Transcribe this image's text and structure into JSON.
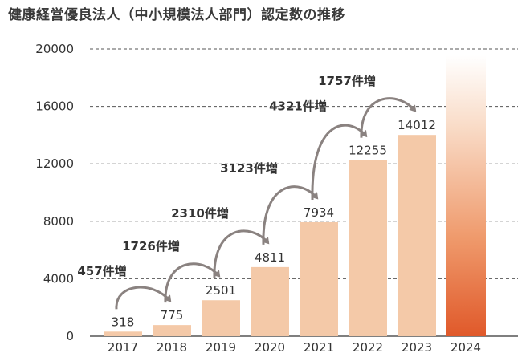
{
  "chart_data": {
    "type": "bar",
    "title": "健康経営優良法人（中小規模法人部門）認定数の推移",
    "categories": [
      "2017",
      "2018",
      "2019",
      "2020",
      "2021",
      "2022",
      "2023",
      "2024"
    ],
    "values": [
      318,
      775,
      2501,
      4811,
      7934,
      12255,
      14012,
      null
    ],
    "value_labels": [
      "318",
      "775",
      "2501",
      "4811",
      "7934",
      "12255",
      "14012",
      ""
    ],
    "ylim": [
      0,
      20000
    ],
    "yticks": [
      "0",
      "4000",
      "8000",
      "12000",
      "16000",
      "20000"
    ],
    "grid": "dashed-horizontal",
    "increase_labels": [
      "457件増",
      "1726件増",
      "2310件増",
      "3123件増",
      "4321件増",
      "1757件増"
    ],
    "last_bar_style": "gradient-open-ended",
    "colors": {
      "bar": "#f4c9a8",
      "gradient_bottom": "#e0592a",
      "gradient_top": "#ffffff",
      "arrow": "#8a8280",
      "grid": "#555555"
    }
  }
}
